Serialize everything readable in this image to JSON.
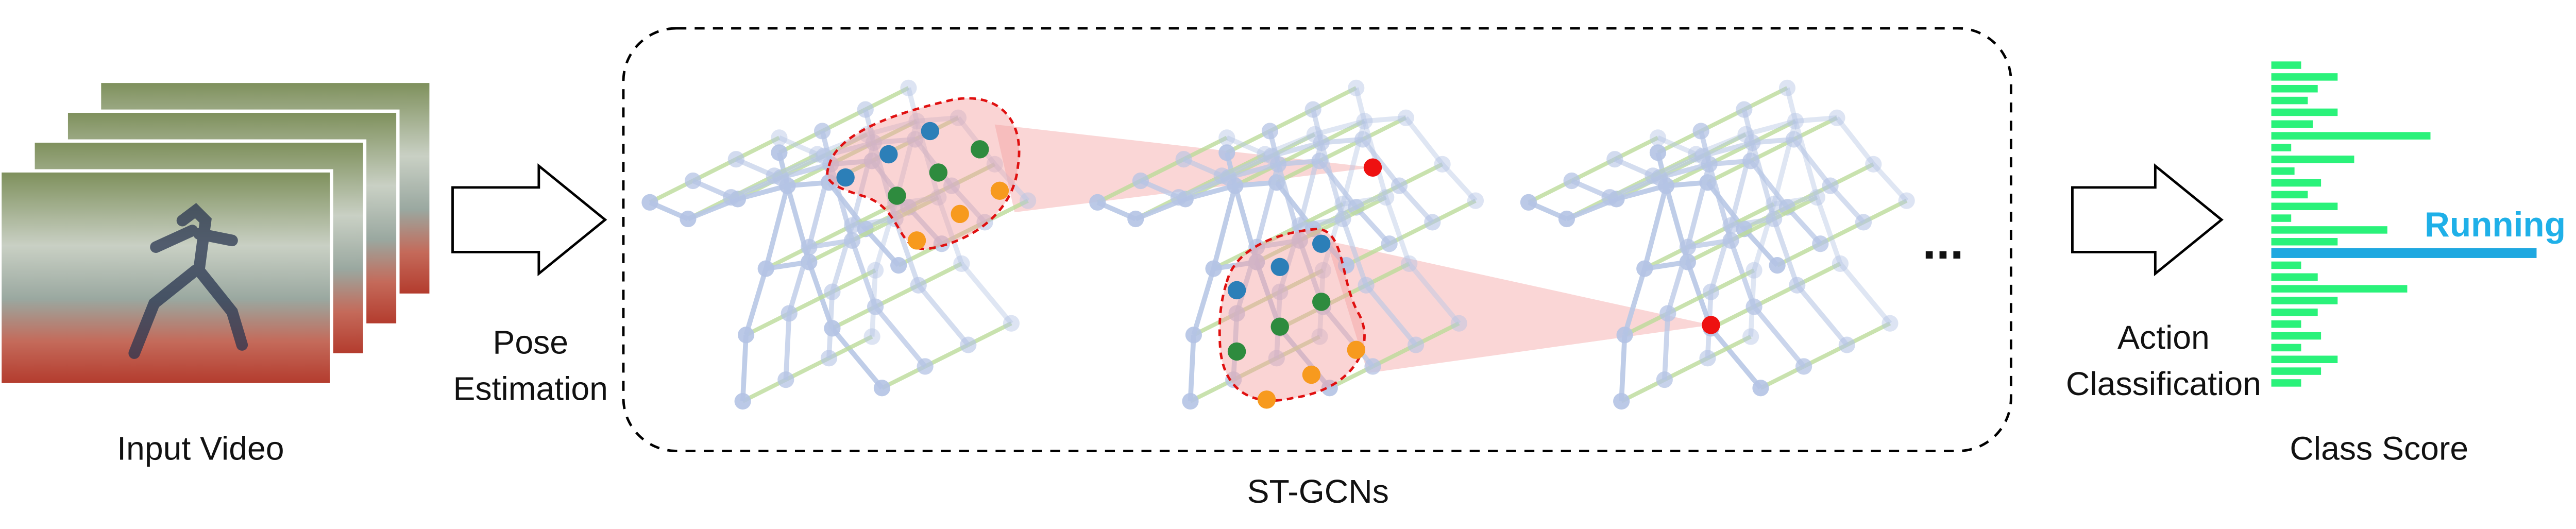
{
  "input_label": "Input Video",
  "pose_estimation": [
    "Pose",
    "Estimation"
  ],
  "stgcn_label": "ST-GCNs",
  "ellipsis": "...",
  "action_classification": [
    "Action",
    "Classification"
  ],
  "predicted_class": "Running",
  "output_label": "Class Score"
}
